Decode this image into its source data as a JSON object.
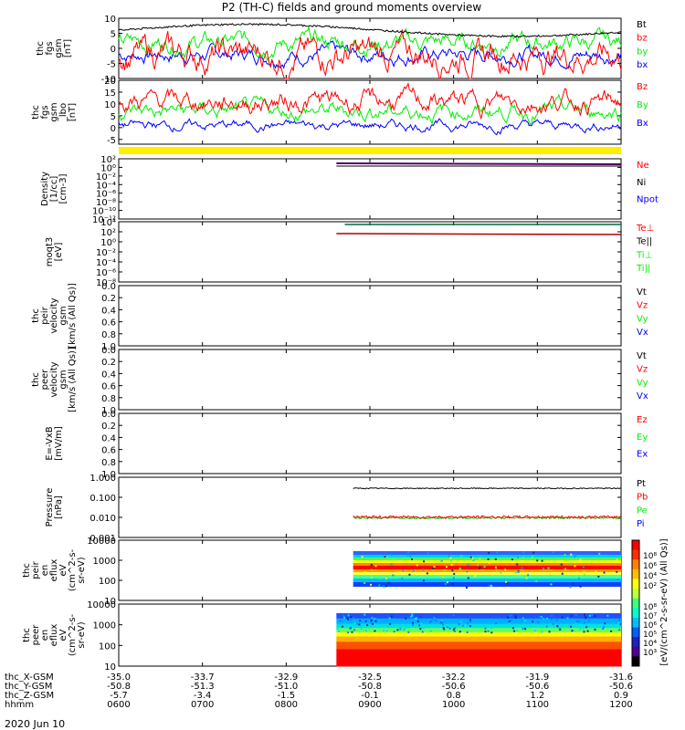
{
  "title": "P2 (TH-C) fields and ground moments overview",
  "colors": {
    "black": "#000000",
    "red": "#ff0000",
    "green": "#00ee00",
    "blue": "#0000ff",
    "purple": "#500060",
    "darkgreen": "#006b3c",
    "yellow": "#ffee00"
  },
  "chart_data": [
    {
      "type": "line",
      "id": "fgs",
      "ylabel": [
        "thc",
        "fgs",
        "gsm",
        "[nT]"
      ],
      "ylim": [
        -10,
        10
      ],
      "yticks": [
        -10,
        -5,
        0,
        5,
        10
      ],
      "x_start_hours": 6.0,
      "x_end_hours": 12.0,
      "series": [
        {
          "name": "Bt",
          "color": "#000000",
          "mean": 7,
          "noise": 0.5
        },
        {
          "name": "bz",
          "color": "#ff0000",
          "mean": -2,
          "noise": 3.0
        },
        {
          "name": "by",
          "color": "#00ee00",
          "mean": 2,
          "noise": 1.8
        },
        {
          "name": "bx",
          "color": "#0000ff",
          "mean": -2,
          "noise": 1.5
        }
      ]
    },
    {
      "type": "line",
      "id": "fgs_gse",
      "ylabel": [
        "thc",
        "fgs",
        "gsm",
        "_lbo",
        "[nT]"
      ],
      "ylim": [
        -7,
        20
      ],
      "yticks": [
        -5,
        0,
        5,
        10,
        15,
        20
      ],
      "series": [
        {
          "name": "Bz",
          "color": "#ff0000",
          "mean": 11,
          "noise": 2.5
        },
        {
          "name": "By",
          "color": "#00ee00",
          "mean": 7,
          "noise": 2.0
        },
        {
          "name": "Bx",
          "color": "#0000ff",
          "mean": 1,
          "noise": 1.2
        }
      ]
    },
    {
      "type": "line",
      "id": "density",
      "ylabel": [
        "Density",
        "[1/cc]",
        "[cm-3]"
      ],
      "scale": "log",
      "ytick_labels": [
        "10²",
        "10⁰",
        "10⁻²",
        "10⁻⁴",
        "10⁻⁶",
        "10⁻⁸",
        "10⁻¹⁰",
        "10⁻¹²"
      ],
      "data_start_hours": 8.6,
      "series": [
        {
          "name": "Ne",
          "color": "#ff0000"
        },
        {
          "name": "Ni",
          "color": "#000000"
        },
        {
          "name": "Npot",
          "color": "#0000ff"
        }
      ]
    },
    {
      "type": "line",
      "id": "temperature",
      "ylabel": [
        "moqt3",
        "[eV]"
      ],
      "scale": "log",
      "ytick_labels": [
        "10⁴",
        "10²",
        "10⁰",
        "10⁻²",
        "10⁻⁴",
        "10⁻⁶",
        "10⁻⁸"
      ],
      "series": [
        {
          "name": "Te⊥",
          "color": "#ff0000"
        },
        {
          "name": "Te||",
          "color": "#000000"
        },
        {
          "name": "Ti⊥",
          "color": "#00ee00"
        },
        {
          "name": "Ti||",
          "color": "#00ee00"
        }
      ]
    },
    {
      "type": "line",
      "id": "peir_velocity",
      "ylabel": [
        "thc",
        "peir",
        "velocity",
        "gsm",
        "[km/s (All Qs)]"
      ],
      "ylim": [
        0,
        1
      ],
      "ytick_labels": [
        "0.0",
        "0.2",
        "0.4",
        "0.6",
        "0.8",
        "1.0"
      ],
      "series": [
        {
          "name": "Vt",
          "color": "#000000"
        },
        {
          "name": "Vz",
          "color": "#ff0000"
        },
        {
          "name": "Vy",
          "color": "#00ee00"
        },
        {
          "name": "Vx",
          "color": "#0000ff"
        }
      ]
    },
    {
      "type": "line",
      "id": "peer_velocity",
      "ylabel": [
        "thc",
        "peer",
        "velocity",
        "gsm",
        "[km/s (All Qs)]"
      ],
      "ylim": [
        0,
        1
      ],
      "ytick_labels": [
        "0.0",
        "0.2",
        "0.4",
        "0.6",
        "0.8",
        "1.0"
      ],
      "series": [
        {
          "name": "Vt",
          "color": "#000000"
        },
        {
          "name": "Vz",
          "color": "#ff0000"
        },
        {
          "name": "Vy",
          "color": "#00ee00"
        },
        {
          "name": "Vx",
          "color": "#0000ff"
        }
      ]
    },
    {
      "type": "line",
      "id": "efield",
      "ylabel": [
        "E=-VxB",
        "[mV/m]"
      ],
      "ylim": [
        0,
        1
      ],
      "ytick_labels": [
        "0.0",
        "0.2",
        "0.4",
        "0.6",
        "0.8",
        "1.0"
      ],
      "series": [
        {
          "name": "Ez",
          "color": "#ff0000"
        },
        {
          "name": "Ey",
          "color": "#00ee00"
        },
        {
          "name": "Ex",
          "color": "#0000ff"
        }
      ]
    },
    {
      "type": "line",
      "id": "pressure",
      "ylabel": [
        "Pressure",
        "[nPa]"
      ],
      "scale": "log",
      "ytick_labels": [
        "1.000",
        "0.100",
        "0.010",
        "0.001"
      ],
      "data_start_hours": 8.8,
      "series": [
        {
          "name": "Pt",
          "color": "#000000",
          "value": 0.28
        },
        {
          "name": "Pb",
          "color": "#ff0000",
          "value": 0.011
        },
        {
          "name": "Pe",
          "color": "#00ee00",
          "value": 0.0095
        },
        {
          "name": "Pi",
          "color": "#0000ff"
        }
      ]
    },
    {
      "type": "heatmap",
      "id": "peir_en",
      "ylabel": [
        "thc",
        "peir",
        "en",
        "eflux",
        "eV",
        "(cm^2-s-",
        "sr-eV)"
      ],
      "scale": "log",
      "ytick_labels": [
        "10000",
        "1000",
        "100",
        "10"
      ],
      "data_start_hours": 8.8
    },
    {
      "type": "heatmap",
      "id": "peer_en",
      "ylabel": [
        "thc",
        "peer",
        "en",
        "eflux",
        "eV",
        "(cm^2-s-",
        "sr-eV)"
      ],
      "scale": "log",
      "ytick_labels": [
        "10000",
        "1000",
        "100",
        "10"
      ],
      "data_start_hours": 8.6
    }
  ],
  "colorbar": {
    "ticks_top": [
      "10⁸",
      "10⁶",
      "10⁴",
      "10²"
    ],
    "ticks_bottom": [
      "10⁸",
      "10⁷",
      "10⁶",
      "10⁵",
      "10⁴",
      "10³"
    ],
    "label": "[eV/(cm^2-s-sr-eV) (All Qs)]"
  },
  "xaxis": {
    "rows": [
      {
        "label": "thc_X-GSM",
        "values": [
          "-35.0",
          "-33.7",
          "-32.9",
          "-32.5",
          "-32.2",
          "-31.9",
          "-31.6"
        ]
      },
      {
        "label": "thc_Y-GSM",
        "values": [
          "-50.8",
          "-51.3",
          "-51.0",
          "-50.8",
          "-50.6",
          "-50.6",
          "-50.6"
        ]
      },
      {
        "label": "thc_Z-GSM",
        "values": [
          "-5.7",
          "-3.4",
          "-1.5",
          "-0.1",
          "0.8",
          "1.2",
          "0.9"
        ]
      },
      {
        "label": "hhmm",
        "values": [
          "0600",
          "0700",
          "0800",
          "0900",
          "1000",
          "1100",
          "1200"
        ]
      }
    ],
    "date": "2020 Jun 10"
  }
}
